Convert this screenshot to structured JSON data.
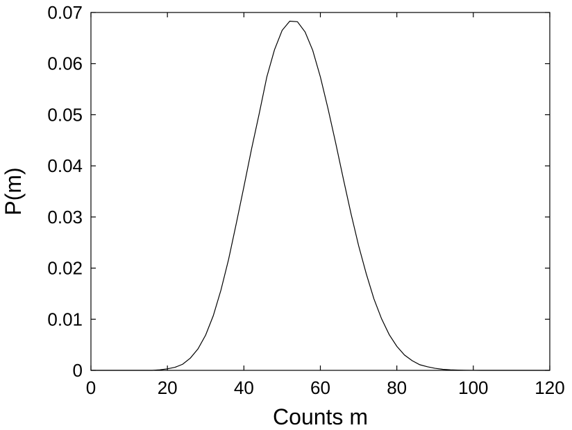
{
  "chart_data": {
    "type": "line",
    "title": "",
    "xlabel": "Counts m",
    "ylabel": "P(m)",
    "xlim": [
      0,
      120
    ],
    "ylim": [
      0,
      0.07
    ],
    "xticks": [
      0,
      20,
      40,
      60,
      80,
      100,
      120
    ],
    "xtick_labels": [
      "0",
      "20",
      "40",
      "60",
      "80",
      "100",
      "120"
    ],
    "yticks": [
      0,
      0.01,
      0.02,
      0.03,
      0.04,
      0.05,
      0.06,
      0.07
    ],
    "ytick_labels": [
      "0",
      "0.01",
      "0.02",
      "0.03",
      "0.04",
      "0.05",
      "0.06",
      "0.07"
    ],
    "grid": false,
    "line_color": "#000000",
    "series": [
      {
        "x": [
          0,
          2,
          4,
          6,
          8,
          10,
          12,
          14,
          16,
          18,
          20,
          22,
          24,
          26,
          28,
          30,
          32,
          34,
          36,
          38,
          40,
          42,
          44,
          46,
          48,
          50,
          52,
          54,
          56,
          58,
          60,
          62,
          64,
          66,
          68,
          70,
          72,
          74,
          76,
          78,
          80,
          82,
          84,
          86,
          88,
          90,
          92,
          94,
          96,
          98,
          100,
          102,
          104,
          106,
          108,
          110,
          112,
          114,
          116,
          118,
          120
        ],
        "values": [
          0,
          0,
          0,
          0,
          0,
          0,
          0,
          0,
          0,
          0.0001,
          0.0003,
          0.0006,
          0.0012,
          0.0024,
          0.0042,
          0.0069,
          0.0107,
          0.0157,
          0.0217,
          0.0287,
          0.0359,
          0.0433,
          0.0502,
          0.0574,
          0.0627,
          0.0665,
          0.0683,
          0.0682,
          0.0662,
          0.0626,
          0.0574,
          0.0512,
          0.0445,
          0.0375,
          0.0307,
          0.0244,
          0.0189,
          0.014,
          0.0101,
          0.007,
          0.0047,
          0.003,
          0.0019,
          0.0011,
          0.0007,
          0.0004,
          0.0002,
          0.0001,
          5e-05,
          2e-05,
          1e-05,
          0,
          0,
          0,
          0,
          0,
          0,
          0,
          0,
          0,
          0
        ]
      }
    ]
  }
}
